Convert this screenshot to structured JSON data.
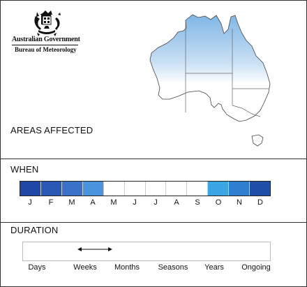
{
  "branding": {
    "gov_name": "Australian Government",
    "agency_name": "Bureau of Meteorology"
  },
  "areas": {
    "title": "AREAS AFFECTED",
    "highlight_region": "northern-australia",
    "highlight_color": "#7fb6e6"
  },
  "when": {
    "title": "WHEN",
    "months": [
      {
        "label": "J",
        "color": "#1f47a6"
      },
      {
        "label": "F",
        "color": "#2a58b5"
      },
      {
        "label": "M",
        "color": "#3a72c8"
      },
      {
        "label": "A",
        "color": "#4a93dd"
      },
      {
        "label": "M",
        "color": "#ffffff"
      },
      {
        "label": "J",
        "color": "#ffffff"
      },
      {
        "label": "J",
        "color": "#ffffff"
      },
      {
        "label": "A",
        "color": "#ffffff"
      },
      {
        "label": "S",
        "color": "#ffffff"
      },
      {
        "label": "O",
        "color": "#3aa6e4"
      },
      {
        "label": "N",
        "color": "#2f7fd0"
      },
      {
        "label": "D",
        "color": "#1f4fa8"
      }
    ]
  },
  "duration": {
    "title": "DURATION",
    "scale": [
      "Days",
      "Weeks",
      "Months",
      "Seasons",
      "Years",
      "Ongoing"
    ],
    "range": {
      "from": "Weeks",
      "to": "Months"
    }
  }
}
